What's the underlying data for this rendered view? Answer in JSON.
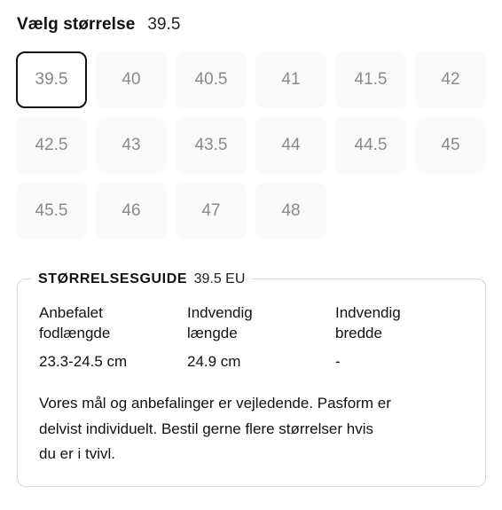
{
  "header": {
    "title": "Vælg størrelse",
    "selected_value": "39.5"
  },
  "sizes": [
    "39.5",
    "40",
    "40.5",
    "41",
    "41.5",
    "42",
    "42.5",
    "43",
    "43.5",
    "44",
    "44.5",
    "45",
    "45.5",
    "46",
    "47",
    "48"
  ],
  "selected_size": "39.5",
  "guide": {
    "title": "STØRRELSESGUIDE",
    "value": "39.5 EU",
    "columns": [
      {
        "label_line1": "Anbefalet",
        "label_line2": "fodlængde",
        "value": "23.3-24.5 cm"
      },
      {
        "label_line1": "Indvendig",
        "label_line2": "længde",
        "value": "24.9 cm"
      },
      {
        "label_line1": "Indvendig",
        "label_line2": "bredde",
        "value": "-"
      }
    ],
    "note_lines": [
      "Vores mål og anbefalinger er vejledende. Pasform er",
      "delvist individuelt. Bestil gerne flere størrelser hvis",
      "du er i tvivl."
    ]
  }
}
